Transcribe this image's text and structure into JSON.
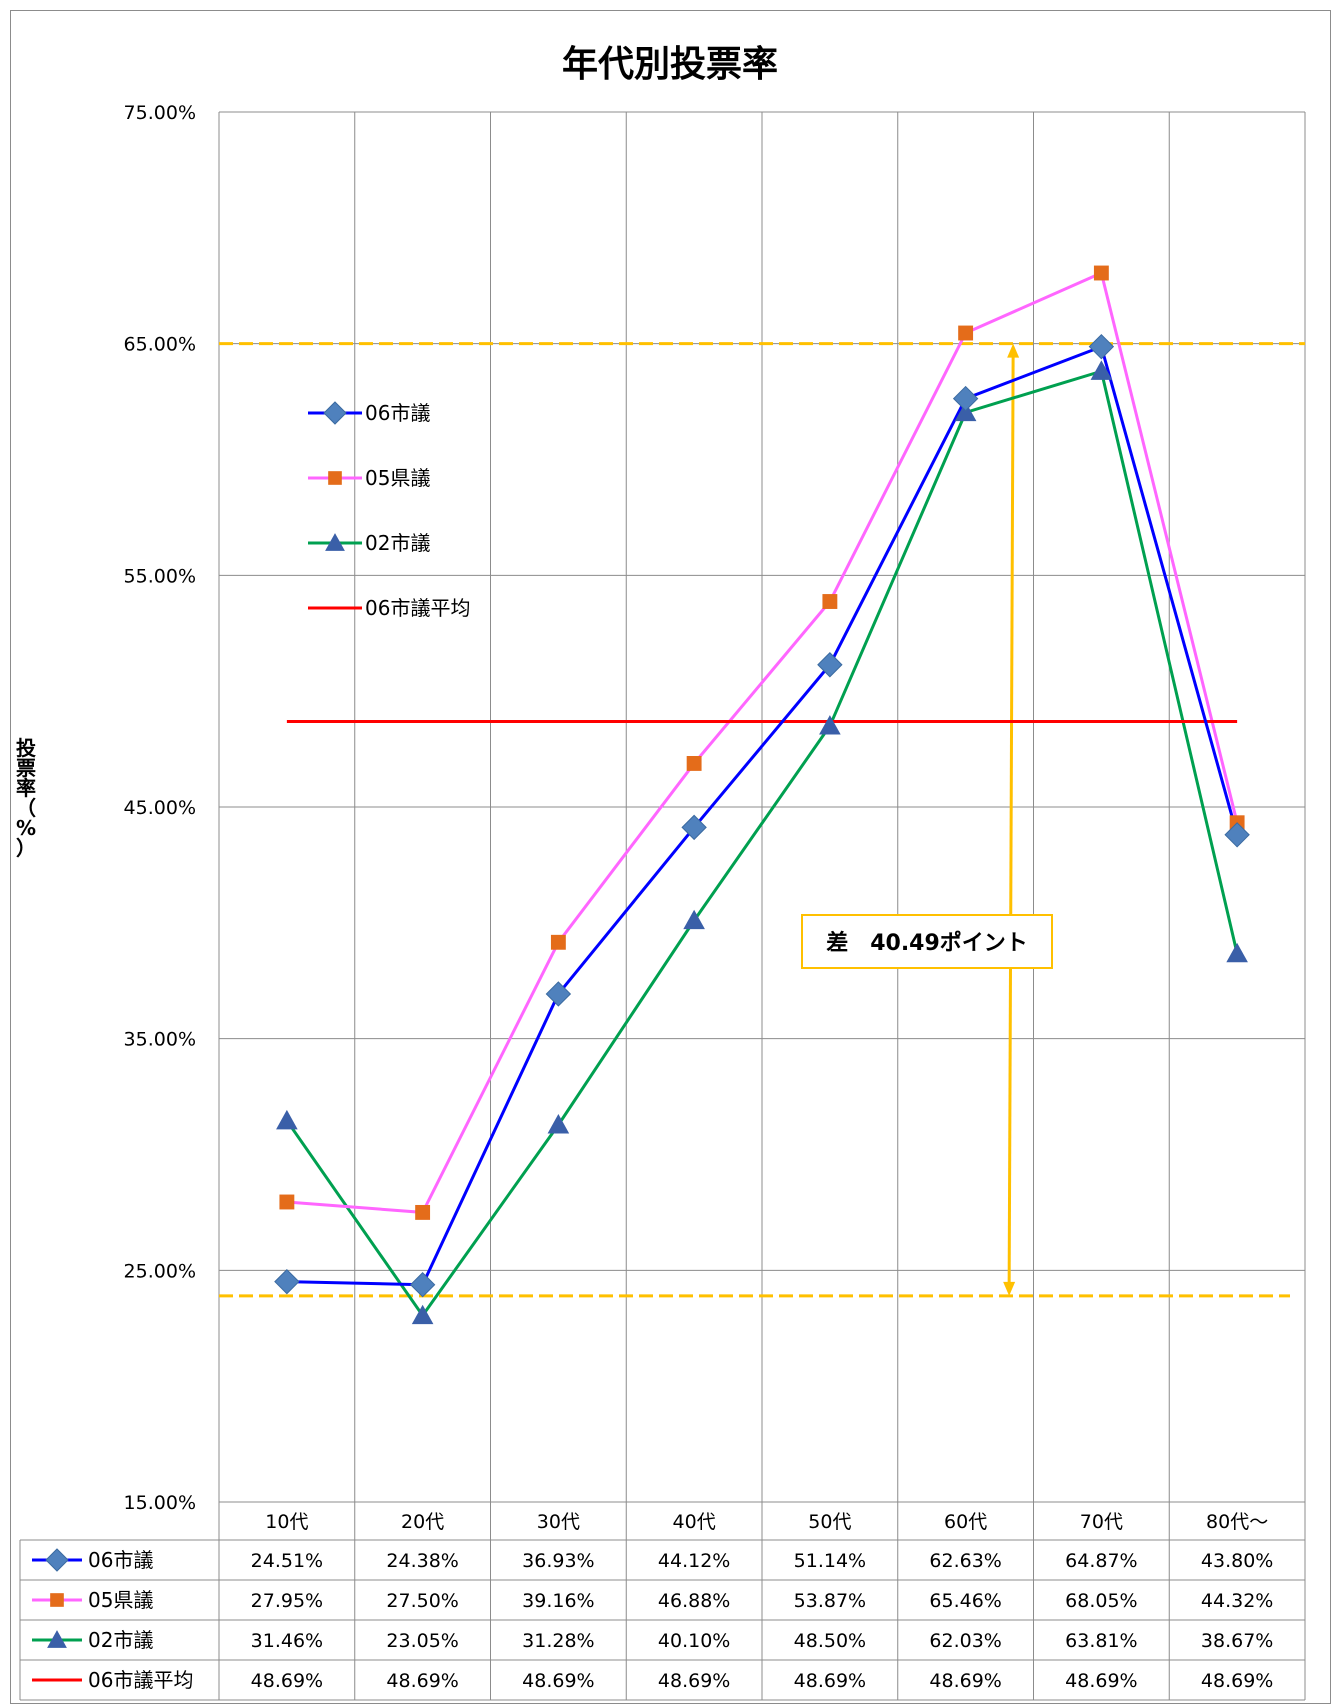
{
  "chart_data": {
    "type": "line",
    "title": "年代別投票率",
    "ylabel": "投票率（%）",
    "xlabel": "",
    "categories": [
      "10代",
      "20代",
      "30代",
      "40代",
      "50代",
      "60代",
      "70代",
      "80代～"
    ],
    "y_ticks": [
      "15.00%",
      "25.00%",
      "35.00%",
      "45.00%",
      "55.00%",
      "65.00%",
      "75.00%"
    ],
    "ylim": [
      15,
      75
    ],
    "grid": true,
    "legend_position": "upper-left inside plot",
    "series": [
      {
        "name": "06市議",
        "color": "#0000ff",
        "marker": "diamond",
        "marker_color": "#4f81bd",
        "values": [
          24.51,
          24.38,
          36.93,
          44.12,
          51.14,
          62.63,
          64.87,
          43.8
        ],
        "labels": [
          "24.51%",
          "24.38%",
          "36.93%",
          "44.12%",
          "51.14%",
          "62.63%",
          "64.87%",
          "43.80%"
        ]
      },
      {
        "name": "05県議",
        "color": "#ff66ff",
        "marker": "square",
        "marker_color": "#e46c1a",
        "values": [
          27.95,
          27.5,
          39.16,
          46.88,
          53.87,
          65.46,
          68.05,
          44.32
        ],
        "labels": [
          "27.95%",
          "27.50%",
          "39.16%",
          "46.88%",
          "53.87%",
          "65.46%",
          "68.05%",
          "44.32%"
        ]
      },
      {
        "name": "02市議",
        "color": "#00a050",
        "marker": "triangle",
        "marker_color": "#3a5fa8",
        "values": [
          31.46,
          23.05,
          31.28,
          40.1,
          48.5,
          62.03,
          63.81,
          38.67
        ],
        "labels": [
          "31.46%",
          "23.05%",
          "31.28%",
          "40.10%",
          "48.50%",
          "62.03%",
          "63.81%",
          "38.67%"
        ]
      },
      {
        "name": "06市議平均",
        "color": "#ff0000",
        "marker": "none",
        "marker_color": "#ff0000",
        "values": [
          48.69,
          48.69,
          48.69,
          48.69,
          48.69,
          48.69,
          48.69,
          48.69
        ],
        "labels": [
          "48.69%",
          "48.69%",
          "48.69%",
          "48.69%",
          "48.69%",
          "48.69%",
          "48.69%",
          "48.69%"
        ]
      }
    ],
    "annotation": {
      "text": "差　40.49ポイント",
      "color": "#ffc000",
      "upper_value": 65.0,
      "lower_value": 23.9,
      "category_position": 5.85
    }
  }
}
